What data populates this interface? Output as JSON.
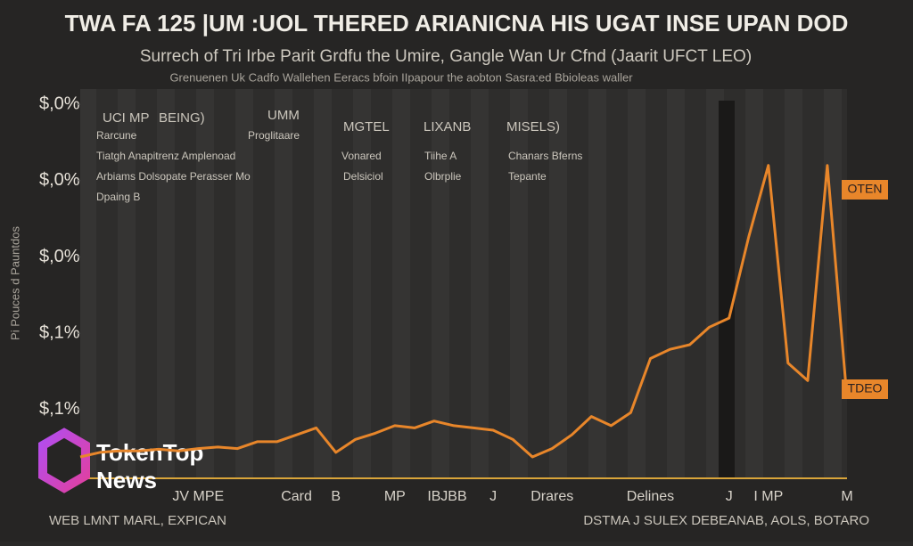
{
  "chart_data": {
    "type": "line",
    "title": "TWA FA 125 |UM :UOL THERED ARIANICNA HIS UGAT INSE UPAN DOD",
    "subtitle": "Surrech of Tri Irbe Parit Grdfu the Umire, Gangle Wan Ur Cfnd (Jaarit UFCT LEO)",
    "subtitle_2": "Grenuenen Uk Cadfo Wallehen Eeracs bfoin IIpapour the aobton Sasra:ed Bbioleas waller",
    "y_label": "Pi Pouces d Pauntdos",
    "categories": [
      null,
      null,
      null,
      null,
      null,
      null,
      "JV MPE",
      null,
      null,
      null,
      null,
      "Card",
      null,
      "B",
      null,
      null,
      "MP",
      null,
      "IB",
      "JBB",
      null,
      "J",
      null,
      null,
      "Drares",
      null,
      null,
      null,
      null,
      "Delines",
      null,
      null,
      null,
      "J",
      null,
      "I MP",
      null,
      null,
      null,
      "M"
    ],
    "series": [
      {
        "name": "OTEN",
        "color": "#e8862a",
        "values": [
          0.38,
          0.44,
          0.46,
          0.46,
          0.48,
          0.46,
          0.49,
          0.51,
          0.49,
          0.58,
          0.58,
          0.67,
          0.76,
          0.44,
          0.61,
          0.69,
          0.79,
          0.76,
          0.85,
          0.79,
          0.76,
          0.73,
          0.61,
          0.38,
          0.49,
          0.67,
          0.91,
          0.79,
          0.96,
          1.67,
          1.79,
          1.85,
          2.08,
          2.2,
          3.26,
          4.2,
          1.61,
          1.38,
          4.2,
          1.14
        ]
      }
    ],
    "ylim": [
      0.1,
      5.2
    ],
    "yticks": [
      {
        "value": 5,
        "label": "$,0%"
      },
      {
        "value": 4,
        "label": "$,0%"
      },
      {
        "value": 3,
        "label": "$,0%"
      },
      {
        "value": 2,
        "label": "$,1%"
      },
      {
        "value": 1,
        "label": "$,1%"
      }
    ],
    "annotations": [
      "OTEN",
      "TDEO"
    ],
    "notes": [
      "UCI MP",
      "BEING)",
      "UMM",
      "MGTEL",
      "LIXANB",
      "MISELS)",
      "Rarcune",
      "Proglitaare",
      "Tiatgh Anapitrenz Amplenoad",
      "Vonared",
      "Tiihe A",
      "Chanars Bferns",
      "Arbiams Dolsopate Perasser Mo",
      "Delsiciol",
      "Olbrplie",
      "Tepante",
      "Dpaing B"
    ],
    "footer_left": "WEB LMNT MARL, EXPICAN",
    "footer_right": "DSTMA J SULEX DEBEANAB, AOLS, BOTARO"
  },
  "watermark": {
    "line_1": "TokenTop",
    "line_2": "News"
  }
}
